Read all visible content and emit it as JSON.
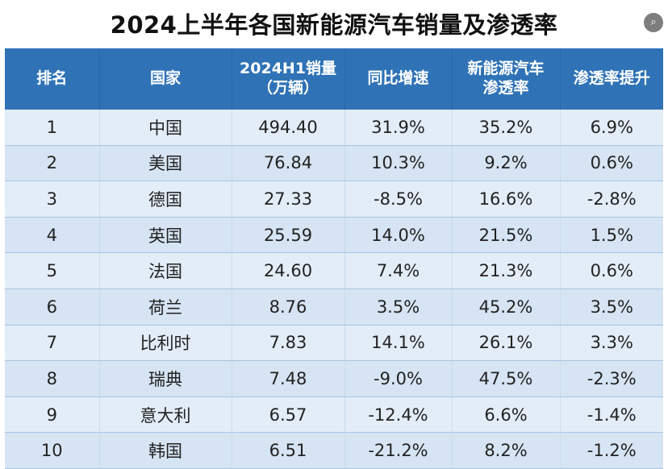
{
  "title": "2024上半年各国新能源汽车销量及渗透率",
  "headers": {
    "rank": "排名",
    "country": "国家",
    "sales_line1": "2024H1销量",
    "sales_line2": "（万辆）",
    "growth": "同比增速",
    "pen_line1": "新能源汽车",
    "pen_line2": "渗透率",
    "pen_increase": "渗透率提升"
  },
  "rows": [
    {
      "rank": "1",
      "country": "中国",
      "sales": "494.40",
      "growth": "31.9%",
      "penetration": "35.2%",
      "increase": "6.9%"
    },
    {
      "rank": "2",
      "country": "美国",
      "sales": "76.84",
      "growth": "10.3%",
      "penetration": "9.2%",
      "increase": "0.6%"
    },
    {
      "rank": "3",
      "country": "德国",
      "sales": "27.33",
      "growth": "-8.5%",
      "penetration": "16.6%",
      "increase": "-2.8%"
    },
    {
      "rank": "4",
      "country": "英国",
      "sales": "25.59",
      "growth": "14.0%",
      "penetration": "21.5%",
      "increase": "1.5%"
    },
    {
      "rank": "5",
      "country": "法国",
      "sales": "24.60",
      "growth": "7.4%",
      "penetration": "21.3%",
      "increase": "0.6%"
    },
    {
      "rank": "6",
      "country": "荷兰",
      "sales": "8.76",
      "growth": "3.5%",
      "penetration": "45.2%",
      "increase": "3.5%"
    },
    {
      "rank": "7",
      "country": "比利时",
      "sales": "7.83",
      "growth": "14.1%",
      "penetration": "26.1%",
      "increase": "3.3%"
    },
    {
      "rank": "8",
      "country": "瑞典",
      "sales": "7.48",
      "growth": "-9.0%",
      "penetration": "47.5%",
      "increase": "-2.3%"
    },
    {
      "rank": "9",
      "country": "意大利",
      "sales": "6.57",
      "growth": "-12.4%",
      "penetration": "6.6%",
      "increase": "-1.4%"
    },
    {
      "rank": "10",
      "country": "韩国",
      "sales": "6.51",
      "growth": "-21.2%",
      "penetration": "8.2%",
      "increase": "-1.2%"
    }
  ]
}
